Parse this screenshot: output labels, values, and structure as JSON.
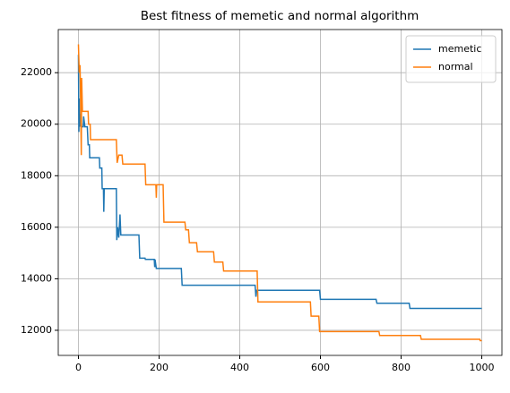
{
  "chart_data": {
    "type": "line",
    "title": "Best fitness of memetic and normal algorithm",
    "series": [
      {
        "name": "memetic",
        "color": "#1f77b4",
        "x": [
          0,
          1,
          2,
          3,
          5,
          8,
          12,
          13,
          16,
          22,
          24,
          27,
          28,
          52,
          53,
          58,
          59,
          62,
          63,
          64,
          94,
          95,
          97,
          100,
          103,
          105,
          150,
          152,
          165,
          166,
          188,
          189,
          190,
          193,
          255,
          257,
          438,
          440,
          442,
          598,
          600,
          738,
          740,
          820,
          822,
          1000
        ],
        "values": [
          22700,
          19700,
          21000,
          19900,
          20400,
          19900,
          19900,
          20300,
          19900,
          19900,
          19200,
          19200,
          18700,
          18700,
          18300,
          18300,
          17500,
          17500,
          16600,
          17500,
          17500,
          15500,
          16000,
          15600,
          16500,
          15700,
          15700,
          14800,
          14800,
          14750,
          14750,
          14450,
          14750,
          14400,
          14400,
          13750,
          13750,
          13300,
          13550,
          13550,
          13200,
          13200,
          13050,
          13050,
          12850,
          12850
        ]
      },
      {
        "name": "normal",
        "color": "#ff7f0e",
        "x": [
          0,
          2,
          4,
          5,
          7,
          8,
          10,
          24,
          25,
          29,
          30,
          94,
          96,
          100,
          108,
          110,
          165,
          167,
          192,
          193,
          194,
          210,
          212,
          264,
          266,
          273,
          275,
          293,
          295,
          335,
          337,
          358,
          360,
          443,
          445,
          575,
          577,
          596,
          598,
          745,
          747,
          848,
          850,
          995,
          996,
          1000
        ],
        "values": [
          23100,
          22000,
          22300,
          21200,
          18800,
          21800,
          20500,
          20500,
          20000,
          20000,
          19400,
          19400,
          18500,
          18800,
          18800,
          18450,
          18450,
          17650,
          17650,
          17150,
          17650,
          17650,
          16200,
          16200,
          15900,
          15900,
          15400,
          15400,
          15050,
          15050,
          14650,
          14650,
          14300,
          14300,
          13100,
          13100,
          12550,
          12550,
          11950,
          11950,
          11800,
          11800,
          11650,
          11650,
          11600,
          11600
        ]
      }
    ],
    "xlim": [
      -50,
      1050
    ],
    "xticks": [
      0,
      200,
      400,
      600,
      800,
      1000
    ],
    "ylim": [
      11025,
      23675
    ],
    "yticks": [
      12000,
      14000,
      16000,
      18000,
      20000,
      22000
    ],
    "grid": true,
    "legend": "upper right"
  }
}
